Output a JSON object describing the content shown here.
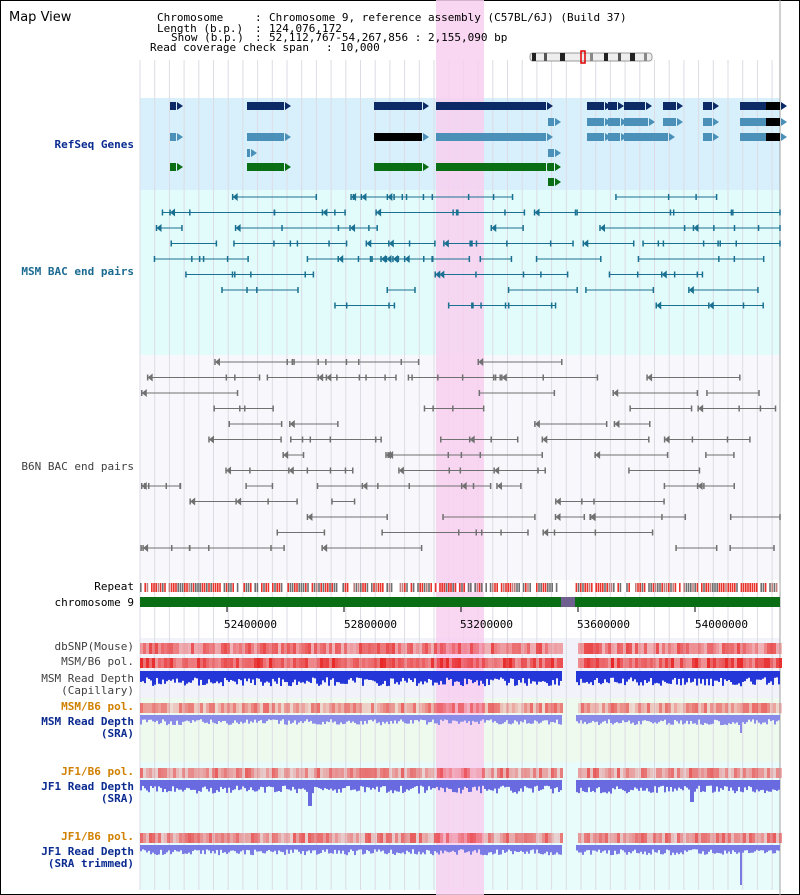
{
  "header": {
    "title": "Map View",
    "chromosome_key": "Chromosome",
    "chromosome_val": "Chromosome 9, reference assembly (C57BL/6J) (Build 37)",
    "length_key": "Length (b.p.)",
    "length_val": "124,076,172",
    "show_key": "Show (b.p.)",
    "show_val": "52,112,767-54,267,856 : 2,155,090 bp",
    "coverage_key": "Read coverage check span",
    "coverage_val": "10,000"
  },
  "tracks": {
    "refseq": "RefSeq Genes",
    "msm_bac": "MSM BAC end pairs",
    "b6n_bac": "B6N BAC end pairs",
    "repeat": "Repeat",
    "chromosome": "chromosome 9",
    "dbsnp": "dbSNP(Mouse)",
    "msm_b6_pol_1": "MSM/B6 pol.",
    "msm_depth_cap_1": "MSM Read Depth",
    "msm_depth_cap_2": "(Capillary)",
    "msm_b6_pol_2": "MSM/B6 pol.",
    "msm_depth_sra_1": "MSM Read Depth",
    "msm_depth_sra_2": "(SRA)",
    "jf1_b6_pol_1": "JF1/B6 pol.",
    "jf1_depth_sra_1": "JF1 Read Depth",
    "jf1_depth_sra_2": "(SRA)",
    "jf1_b6_pol_2": "JF1/B6 pol.",
    "jf1_depth_trim_1": "JF1 Read Depth",
    "jf1_depth_trim_2": "(SRA trimmed)"
  },
  "axis": {
    "ticks": [
      "52400000",
      "52800000",
      "53200000",
      "53600000",
      "54000000"
    ]
  },
  "colors": {
    "highlight": "#f8d0f0",
    "refseq_bg": "#d8f0fc",
    "msm_bg": "#e2fcfc",
    "b6n_bg": "#f8f8fc",
    "gene_dark": "#0b2a66",
    "gene_mid": "#4a90b8",
    "gene_green": "#0a6e14",
    "msm_line": "#1a7090",
    "b6n_line": "#707070",
    "label_blue": "#0a2a90",
    "label_orange": "#d08000",
    "label_teal": "#1a6a90",
    "label_gray": "#404040"
  }
}
